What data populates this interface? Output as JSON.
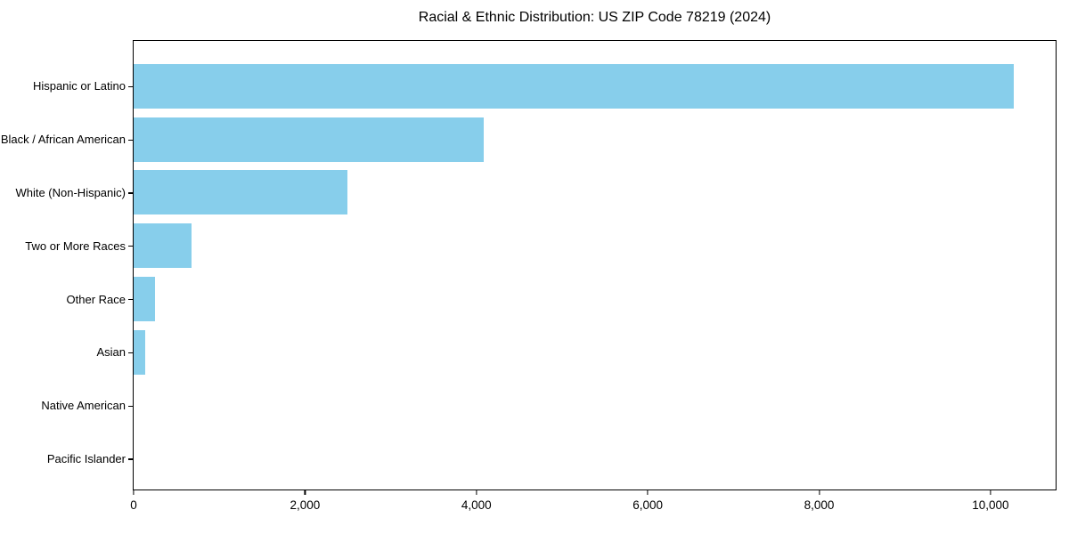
{
  "chart_data": {
    "type": "bar",
    "orientation": "horizontal",
    "title": "Racial & Ethnic Distribution: US ZIP Code 78219 (2024)",
    "categories": [
      "Hispanic or Latino",
      "Black / African American",
      "White (Non-Hispanic)",
      "Two or More Races",
      "Other Race",
      "Asian",
      "Native American",
      "Pacific Islander"
    ],
    "values": [
      10270,
      4085,
      2495,
      675,
      250,
      135,
      0,
      0
    ],
    "xlabel": "",
    "ylabel": "",
    "x_ticks": [
      0,
      2000,
      4000,
      6000,
      8000,
      10000
    ],
    "x_tick_labels": [
      "0",
      "2,000",
      "4,000",
      "6,000",
      "8,000",
      "10,000"
    ],
    "xlim": [
      0,
      10760
    ],
    "bar_color": "#87CEEB",
    "frame_color": "#000000",
    "background_color": "#ffffff",
    "grid": false,
    "legend": false
  }
}
